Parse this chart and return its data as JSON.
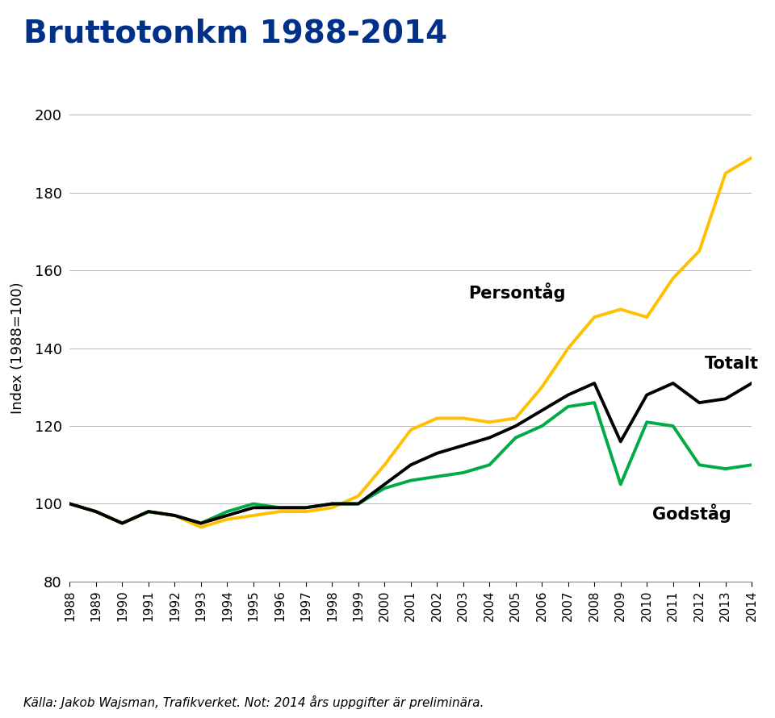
{
  "title": "Bruttotonkm 1988-2014",
  "ylabel": "Index (1988=100)",
  "years": [
    1988,
    1989,
    1990,
    1991,
    1992,
    1993,
    1994,
    1995,
    1996,
    1997,
    1998,
    1999,
    2000,
    2001,
    2002,
    2003,
    2004,
    2005,
    2006,
    2007,
    2008,
    2009,
    2010,
    2011,
    2012,
    2013,
    2014
  ],
  "persontag": [
    100,
    98,
    95,
    98,
    97,
    94,
    96,
    97,
    98,
    98,
    99,
    102,
    110,
    119,
    122,
    122,
    121,
    122,
    130,
    140,
    148,
    150,
    148,
    158,
    165,
    185,
    189
  ],
  "totalt": [
    100,
    98,
    95,
    98,
    97,
    95,
    97,
    99,
    99,
    99,
    100,
    100,
    105,
    110,
    113,
    115,
    117,
    120,
    124,
    128,
    131,
    116,
    128,
    131,
    126,
    127,
    131
  ],
  "godstag": [
    100,
    98,
    95,
    98,
    97,
    95,
    98,
    100,
    99,
    99,
    100,
    100,
    104,
    106,
    107,
    108,
    110,
    117,
    120,
    125,
    126,
    105,
    121,
    120,
    110,
    109,
    110
  ],
  "persontag_color": "#FFC000",
  "totalt_color": "#000000",
  "godstag_color": "#00AA44",
  "title_color": "#003087",
  "ylabel_color": "#000000",
  "bg_color": "#FFFFFF",
  "grid_color": "#BBBBBB",
  "ylim": [
    80,
    200
  ],
  "yticks": [
    80,
    100,
    120,
    140,
    160,
    180,
    200
  ],
  "linewidth": 2.8,
  "footnote_normal": "Jakob Wajsman, Trafikverket. Not: 2014 års uppgifter är preliminära.",
  "footnote_italic": "Källa",
  "persontag_label": "Persontåg",
  "totalt_label": "Totalt",
  "godstag_label": "Godståg"
}
